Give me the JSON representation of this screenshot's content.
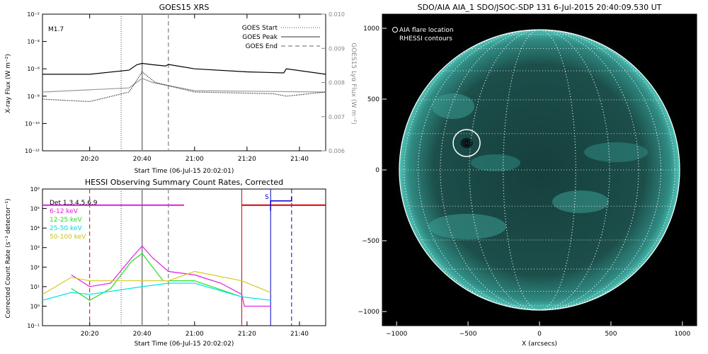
{
  "goes": {
    "title": "GOES15 XRS",
    "xlabel": "Start Time (06-Jul-15 20:02:01)",
    "ylabel_left": "X-ray Flux (W m⁻²)",
    "ylabel_right": "GOES15 Lyα Flux (W m⁻²)",
    "class_label": "M1.7",
    "legend": [
      "GOES Start",
      "GOES Peak",
      "GOES End"
    ],
    "yticks_left": [
      "10⁻²",
      "10⁻⁴",
      "10⁻⁶",
      "10⁻⁸",
      "10⁻¹⁰",
      "10⁻¹²"
    ],
    "yticks_right": [
      "0.010",
      "0.009",
      "0.008",
      "0.007",
      "0.006"
    ],
    "xticks": [
      "20:20",
      "20:40",
      "21:00",
      "21:20",
      "21:40"
    ]
  },
  "hessi": {
    "title": "HESSI Observing Summary Count Rates, Corrected",
    "xlabel": "Start Time (06-Jul-15 20:02:02)",
    "ylabel": "Corrected Count Rate (s⁻¹ detector⁻¹)",
    "yticks": [
      "10⁶",
      "10⁵",
      "10⁴",
      "10³",
      "10²",
      "10¹",
      "10⁰",
      "10⁻¹"
    ],
    "xticks": [
      "20:20",
      "20:40",
      "21:00",
      "21:20",
      "21:40"
    ],
    "det_label": "Det 1,3,4,5,6,9",
    "s_label": "S",
    "legend": [
      {
        "label": "6-12 keV",
        "color": "#e01ee0"
      },
      {
        "label": "12-25 keV",
        "color": "#22dd22"
      },
      {
        "label": "25-50 keV",
        "color": "#00e5e5"
      },
      {
        "label": "50-100 keV",
        "color": "#d2cc20"
      }
    ]
  },
  "aia": {
    "title": "SDO/AIA AIA_1 SDO/JSOC-SDP 131  6-Jul-2015 20:40:09.530 UT",
    "xlabel": "X (arcsecs)",
    "ylabel": "Y (arcsecs)",
    "legend1": "AIA flare location",
    "legend2": "RHESSI contours",
    "xticks": [
      "−1000",
      "−500",
      "0",
      "500",
      "1000"
    ],
    "yticks": [
      "1000",
      "500",
      "0",
      "−500",
      "−1000"
    ]
  },
  "chart_data": [
    {
      "type": "line",
      "title": "GOES15 XRS",
      "xlabel": "Start Time (06-Jul-15 20:02:01)",
      "ylabel": "X-ray Flux (W m⁻²)",
      "y_scale": "log",
      "ylim": [
        1e-12,
        0.01
      ],
      "y2label": "GOES15 Lyα Flux (W m⁻²)",
      "y2lim": [
        0.006,
        0.01
      ],
      "x_range": [
        "20:02",
        "21:50"
      ],
      "class": "M1.7",
      "markers": {
        "GOES Start": "20:32",
        "GOES Peak": "20:40",
        "GOES End": "20:50"
      },
      "series": [
        {
          "name": "",
          "color": "#000000",
          "style": "solid",
          "x": [
            "20:02",
            "20:20",
            "20:35",
            "20:38",
            "20:40",
            "20:44",
            "20:49",
            "20:50",
            "21:00",
            "21:20",
            "21:34",
            "21:35",
            "21:50"
          ],
          "values": [
            4e-07,
            4e-07,
            8e-07,
            2e-06,
            2.5e-06,
            2e-06,
            1.6e-06,
            2.1e-06,
            1e-06,
            6e-07,
            5e-07,
            1e-06,
            4e-07
          ]
        },
        {
          "name": "",
          "color": "#999999",
          "style": "solid",
          "x": [
            "20:02",
            "20:35",
            "20:40",
            "20:44",
            "21:00",
            "21:50"
          ],
          "values": [
            2e-08,
            4e-08,
            2e-07,
            1e-07,
            2.5e-08,
            2e-08
          ]
        },
        {
          "name": "",
          "color": "#000000",
          "style": "dotted",
          "x": [
            "20:02",
            "20:20",
            "20:35",
            "20:38",
            "20:40",
            "20:45",
            "21:00",
            "21:30",
            "21:35",
            "21:50"
          ],
          "values": [
            6e-09,
            4e-09,
            2e-08,
            1.5e-07,
            6e-07,
            1e-07,
            2e-08,
            1.5e-08,
            1e-08,
            2e-08
          ]
        }
      ]
    },
    {
      "type": "line",
      "title": "HESSI Observing Summary Count Rates, Corrected",
      "xlabel": "Start Time (06-Jul-15 20:02:02)",
      "ylabel": "Corrected Count Rate (s⁻¹ detector⁻¹)",
      "y_scale": "log",
      "ylim": [
        0.1,
        1000000.0
      ],
      "x_range": [
        "20:02",
        "21:50"
      ],
      "series": [
        {
          "name": "6-12 keV",
          "color": "#e01ee0",
          "x": [
            "20:13",
            "20:20",
            "20:28",
            "20:36",
            "20:40",
            "20:44",
            "20:50",
            "21:00",
            "21:10",
            "21:18",
            "21:19",
            "21:29"
          ],
          "values": [
            40,
            10,
            15,
            300,
            1200,
            300,
            60,
            40,
            15,
            4,
            1,
            1
          ]
        },
        {
          "name": "12-25 keV",
          "color": "#22dd22",
          "x": [
            "20:13",
            "20:20",
            "20:28",
            "20:36",
            "20:40",
            "20:44",
            "20:48",
            "21:00",
            "21:18"
          ],
          "values": [
            8,
            2,
            8,
            200,
            500,
            100,
            20,
            20,
            3
          ]
        },
        {
          "name": "25-50 keV",
          "color": "#00e5e5",
          "x": [
            "20:02",
            "20:13",
            "20:20",
            "20:40",
            "20:50",
            "21:00",
            "21:18",
            "21:29"
          ],
          "values": [
            2,
            5,
            4,
            10,
            15,
            15,
            3,
            2
          ]
        },
        {
          "name": "50-100 keV",
          "color": "#d2cc20",
          "x": [
            "20:02",
            "20:13",
            "20:20",
            "20:50",
            "21:00",
            "21:18",
            "21:29"
          ],
          "values": [
            4,
            30,
            20,
            20,
            60,
            20,
            5
          ]
        }
      ]
    },
    {
      "type": "heatmap",
      "title": "SDO/AIA AIA_1 SDO/JSOC-SDP 131  6-Jul-2015 20:40:09.530 UT",
      "xlabel": "X (arcsecs)",
      "ylabel": "Y (arcsecs)",
      "xlim": [
        -1100,
        1100
      ],
      "ylim": [
        -1100,
        1100
      ],
      "flare_location": {
        "x": -510,
        "y": 190
      }
    }
  ]
}
